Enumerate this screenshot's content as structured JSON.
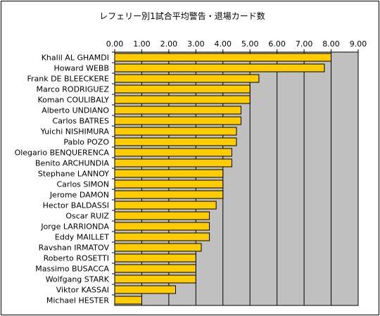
{
  "chart_data": {
    "type": "bar",
    "orientation": "horizontal",
    "title": "レフェリー別1試合平均警告・退場カード数",
    "xlabel": "",
    "ylabel": "",
    "xlim": [
      0,
      9
    ],
    "x_ticks": [
      "0.00",
      "1.00",
      "2.00",
      "3.00",
      "4.00",
      "5.00",
      "6.00",
      "7.00",
      "8.00",
      "9.00"
    ],
    "x_axis_position": "top",
    "grid": true,
    "legend": "none",
    "categories": [
      "Khalil AL GHAMDI",
      "Howard WEBB",
      "Frank DE BLEECKERE",
      "Marco RODRIGUEZ",
      "Koman COULIBALY",
      "Alberto UNDIANO",
      "Carlos BATRES",
      "Yuichi NISHIMURA",
      "Pablo POZO",
      "Olegario BENQUERENCA",
      "Benito ARCHUNDIA",
      "Stephane LANNOY",
      "Carlos SIMON",
      "Jerome DAMON",
      "Hector BALDASSI",
      "Oscar RUIZ",
      "Jorge LARRIONDA",
      "Eddy MAILLET",
      "Ravshan IRMATOV",
      "Roberto ROSETTI",
      "Massimo BUSACCA",
      "Wolfgang STARK",
      "Viktor KASSAI",
      "Michael HESTER"
    ],
    "values": [
      8.0,
      7.75,
      5.33,
      5.0,
      5.0,
      4.67,
      4.67,
      4.5,
      4.5,
      4.33,
      4.33,
      4.0,
      4.0,
      4.0,
      3.75,
      3.5,
      3.5,
      3.5,
      3.2,
      3.0,
      3.0,
      3.0,
      2.25,
      1.0
    ],
    "colors": {
      "bar_fill": "#FFCC00",
      "bar_stroke": "#000000",
      "plot_background": "#C0C0C0",
      "gridline": "#000000"
    }
  }
}
